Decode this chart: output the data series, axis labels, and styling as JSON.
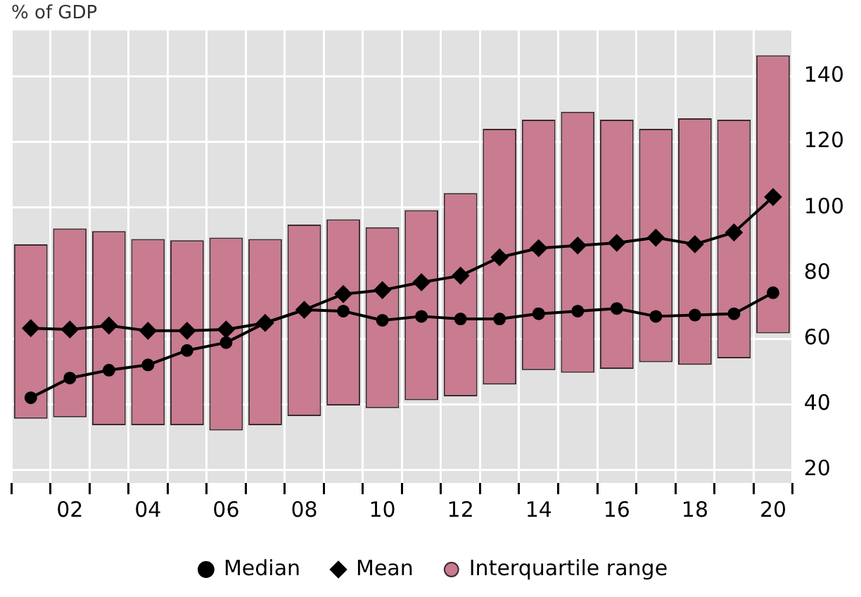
{
  "chart_data": {
    "type": "bar",
    "ylabel": "% of GDP",
    "categories": [
      null,
      "02",
      null,
      "04",
      null,
      "06",
      null,
      "08",
      null,
      "10",
      null,
      "12",
      null,
      "14",
      null,
      "16",
      null,
      "18",
      null,
      "20"
    ],
    "series": [
      {
        "name": "Median",
        "type": "line",
        "marker": "circle",
        "color": "#000000",
        "values": [
          42,
          48,
          50.4,
          52,
          56.4,
          58.8,
          64.8,
          68.8,
          68.4,
          65.6,
          66.8,
          66,
          66,
          67.6,
          68.4,
          69.2,
          66.8,
          67.2,
          67.6,
          74
        ]
      },
      {
        "name": "Mean",
        "type": "line",
        "marker": "diamond",
        "color": "#000000",
        "values": [
          63.2,
          62.8,
          64,
          62.4,
          62.4,
          62.8,
          64.8,
          68.8,
          73.6,
          74.8,
          77.2,
          79.2,
          84.8,
          87.6,
          88.4,
          89.2,
          90.8,
          88.8,
          92.4,
          103.2
        ]
      },
      {
        "name": "Interquartile range",
        "type": "bar",
        "color": "#c97b90",
        "base": [
          35.6,
          36,
          33.6,
          33.6,
          33.6,
          32,
          33.6,
          36.4,
          39.6,
          38.8,
          41.2,
          42.4,
          46,
          50.4,
          49.6,
          50.8,
          52.8,
          52,
          54,
          61.6
        ],
        "values": [
          53.2,
          57.6,
          59.2,
          56.8,
          56.4,
          58.8,
          56.8,
          58.4,
          56.8,
          55.2,
          58,
          62,
          78,
          76.4,
          79.6,
          76,
          71.2,
          75.2,
          72.8,
          84.8
        ]
      }
    ],
    "ylim": [
      16,
      154
    ],
    "yticks": [
      20,
      40,
      60,
      80,
      100,
      120,
      140
    ],
    "grid": true,
    "legend": "bottom"
  }
}
